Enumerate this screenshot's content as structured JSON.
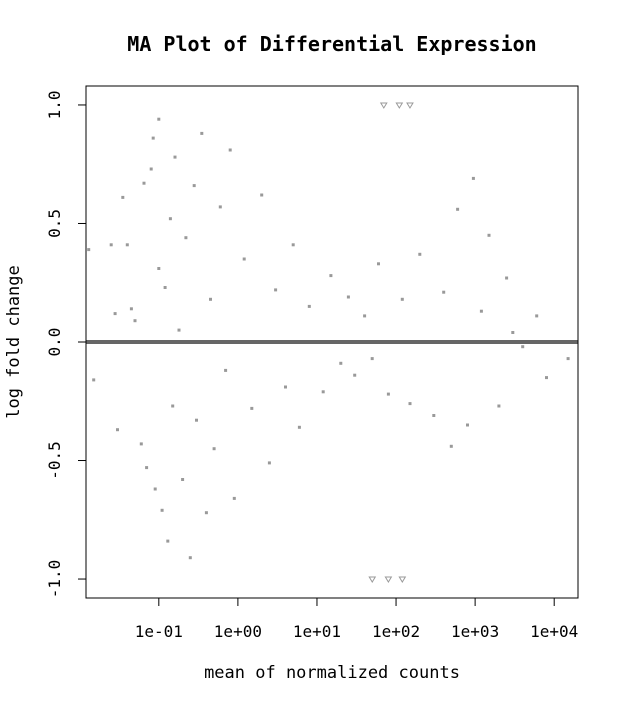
{
  "chart_data": {
    "type": "scatter",
    "title": "MA Plot of Differential Expression",
    "xlabel": "mean of normalized counts",
    "ylabel": "log fold change",
    "x_scale": "log10",
    "xlim": [
      0.012,
      20000
    ],
    "ylim": [
      -1.08,
      1.08
    ],
    "x_ticks": [
      {
        "value": 0.1,
        "label": "1e-01"
      },
      {
        "value": 1,
        "label": "1e+00"
      },
      {
        "value": 10,
        "label": "1e+01"
      },
      {
        "value": 100,
        "label": "1e+02"
      },
      {
        "value": 1000,
        "label": "1e+03"
      },
      {
        "value": 10000,
        "label": "1e+04"
      }
    ],
    "y_ticks": [
      {
        "value": -1.0,
        "label": "-1.0"
      },
      {
        "value": -0.5,
        "label": "-0.5"
      },
      {
        "value": 0.0,
        "label": "0.0"
      },
      {
        "value": 0.5,
        "label": "0.5"
      },
      {
        "value": 1.0,
        "label": "1.0"
      }
    ],
    "reference_line": {
      "y": 0,
      "color": "#666666"
    },
    "point_color": "#999999",
    "grid": false,
    "legend": "none",
    "series": [
      {
        "points": [
          [
            0.013,
            0.39
          ],
          [
            0.015,
            -0.16
          ],
          [
            0.025,
            0.41
          ],
          [
            0.028,
            0.12
          ],
          [
            0.03,
            -0.37
          ],
          [
            0.035,
            0.61
          ],
          [
            0.04,
            0.41
          ],
          [
            0.045,
            0.14
          ],
          [
            0.05,
            0.09
          ],
          [
            0.06,
            -0.43
          ],
          [
            0.065,
            0.67
          ],
          [
            0.07,
            -0.53
          ],
          [
            0.08,
            0.73
          ],
          [
            0.085,
            0.86
          ],
          [
            0.09,
            -0.62
          ],
          [
            0.1,
            0.94
          ],
          [
            0.1,
            0.31
          ],
          [
            0.11,
            -0.71
          ],
          [
            0.12,
            0.23
          ],
          [
            0.13,
            -0.84
          ],
          [
            0.14,
            0.52
          ],
          [
            0.15,
            -0.27
          ],
          [
            0.16,
            0.78
          ],
          [
            0.18,
            0.05
          ],
          [
            0.2,
            -0.58
          ],
          [
            0.22,
            0.44
          ],
          [
            0.25,
            -0.91
          ],
          [
            0.28,
            0.66
          ],
          [
            0.3,
            -0.33
          ],
          [
            0.35,
            0.88
          ],
          [
            0.4,
            -0.72
          ],
          [
            0.45,
            0.18
          ],
          [
            0.5,
            -0.45
          ],
          [
            0.6,
            0.57
          ],
          [
            0.7,
            -0.12
          ],
          [
            0.8,
            0.81
          ],
          [
            0.9,
            -0.66
          ],
          [
            1.2,
            0.35
          ],
          [
            1.5,
            -0.28
          ],
          [
            2.0,
            0.62
          ],
          [
            2.5,
            -0.51
          ],
          [
            3.0,
            0.22
          ],
          [
            4.0,
            -0.19
          ],
          [
            5.0,
            0.41
          ],
          [
            6.0,
            -0.36
          ],
          [
            8.0,
            0.15
          ],
          [
            12.0,
            -0.21
          ],
          [
            15.0,
            0.28
          ],
          [
            20.0,
            -0.09
          ],
          [
            25.0,
            0.19
          ],
          [
            30.0,
            -0.14
          ],
          [
            40.0,
            0.11
          ],
          [
            50.0,
            -0.07
          ],
          [
            60.0,
            0.33
          ],
          [
            80.0,
            -0.22
          ],
          [
            120.0,
            0.18
          ],
          [
            150.0,
            -0.26
          ],
          [
            200.0,
            0.37
          ],
          [
            300.0,
            -0.31
          ],
          [
            400.0,
            0.21
          ],
          [
            500.0,
            -0.44
          ],
          [
            600.0,
            0.56
          ],
          [
            800.0,
            -0.35
          ],
          [
            950.0,
            0.69
          ],
          [
            1200.0,
            0.13
          ],
          [
            1500.0,
            0.45
          ],
          [
            2000.0,
            -0.27
          ],
          [
            2500.0,
            0.27
          ],
          [
            3000.0,
            0.04
          ],
          [
            4000.0,
            -0.02
          ],
          [
            6000.0,
            0.11
          ],
          [
            8000.0,
            -0.15
          ],
          [
            12000.0,
            0.0
          ],
          [
            15000.0,
            -0.07
          ]
        ]
      }
    ],
    "clipped_markers": [
      {
        "x": 110,
        "y": 1.0
      },
      {
        "x": 150,
        "y": 1.0
      },
      {
        "x": 70,
        "y": 1.0
      },
      {
        "x": 120,
        "y": -1.0
      },
      {
        "x": 80,
        "y": -1.0
      },
      {
        "x": 50,
        "y": -1.0
      }
    ]
  }
}
